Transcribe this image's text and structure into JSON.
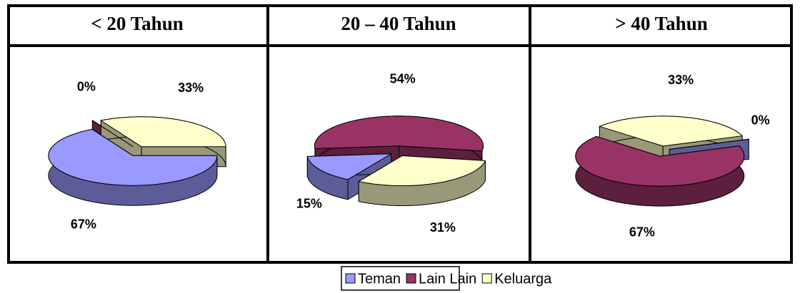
{
  "chart_data": [
    {
      "type": "pie",
      "title": "< 20 Tahun",
      "categories": [
        "Teman",
        "Lain Lain",
        "Keluarga"
      ],
      "values": [
        67,
        0,
        33
      ],
      "value_labels": [
        "67%",
        "0%",
        "33%"
      ],
      "colors": [
        "#9999ff",
        "#993366",
        "#ffffcc"
      ],
      "legend": "bottom"
    },
    {
      "type": "pie",
      "title": "20 – 40 Tahun",
      "categories": [
        "Teman",
        "Lain Lain",
        "Keluarga"
      ],
      "values": [
        15,
        54,
        31
      ],
      "value_labels": [
        "15%",
        "54%",
        "31%"
      ],
      "colors": [
        "#9999ff",
        "#993366",
        "#ffffcc"
      ],
      "legend": "bottom"
    },
    {
      "type": "pie",
      "title": "> 40 Tahun",
      "categories": [
        "Teman",
        "Lain Lain",
        "Keluarga"
      ],
      "values": [
        0,
        67,
        33
      ],
      "value_labels": [
        "0%",
        "67%",
        "33%"
      ],
      "colors": [
        "#9999ff",
        "#993366",
        "#ffffcc"
      ],
      "legend": "bottom"
    }
  ]
}
